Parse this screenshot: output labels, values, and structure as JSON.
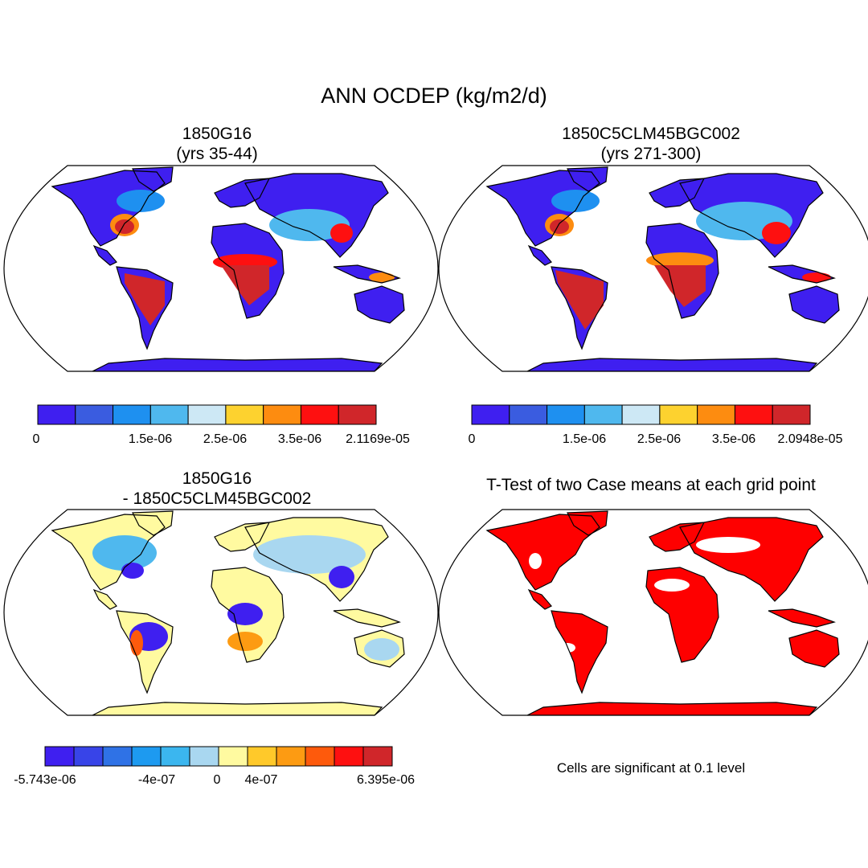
{
  "figure_title": "ANN OCDEP (kg/m2/d)",
  "panels": {
    "top_left": {
      "title_line1": "1850G16",
      "title_line2": "(yrs 35-44)"
    },
    "top_right": {
      "title_line1": "1850C5CLM45BGC002",
      "title_line2": "(yrs 271-300)"
    },
    "bottom_left": {
      "title_line1": "1850G16",
      "title_line2": "- 1850C5CLM45BGC002"
    },
    "bottom_right": {
      "title": "T-Test of two Case means at each grid point",
      "note": "Cells are significant at 0.1 level"
    }
  },
  "colorbars": {
    "top_left": {
      "colors": [
        "#3f1ff0",
        "#3a5ce0",
        "#1e90f0",
        "#4fb8ee",
        "#cde8f5",
        "#fdd22f",
        "#fd8c10",
        "#fe1010",
        "#d0262a"
      ],
      "labels": [
        "0",
        "1.5e-06",
        "2.5e-06",
        "3.5e-06",
        "2.1169e-05"
      ]
    },
    "top_right": {
      "colors": [
        "#3f1ff0",
        "#3a5ce0",
        "#1e90f0",
        "#4fb8ee",
        "#cde8f5",
        "#fdd22f",
        "#fd8c10",
        "#fe1010",
        "#d0262a"
      ],
      "labels": [
        "0",
        "1.5e-06",
        "2.5e-06",
        "3.5e-06",
        "2.0948e-05"
      ]
    },
    "bottom_left": {
      "colors": [
        "#3f1ff0",
        "#3844e8",
        "#2f72e6",
        "#1d9af0",
        "#3bb6ef",
        "#a9d7f0",
        "#fffaa0",
        "#ffc92a",
        "#fd9b12",
        "#fe5a0c",
        "#fe1010",
        "#d0262a"
      ],
      "labels": [
        "-5.743e-06",
        "-4e-07",
        "0",
        "4e-07",
        "6.395e-06"
      ]
    }
  },
  "map_colors": {
    "ocean": "#ffffff",
    "low": "#3f1ff0",
    "mid": "#4fb8ee",
    "high": "#d0262a",
    "diff_neutral": "#fffaa0",
    "significant": "#fe0000"
  }
}
